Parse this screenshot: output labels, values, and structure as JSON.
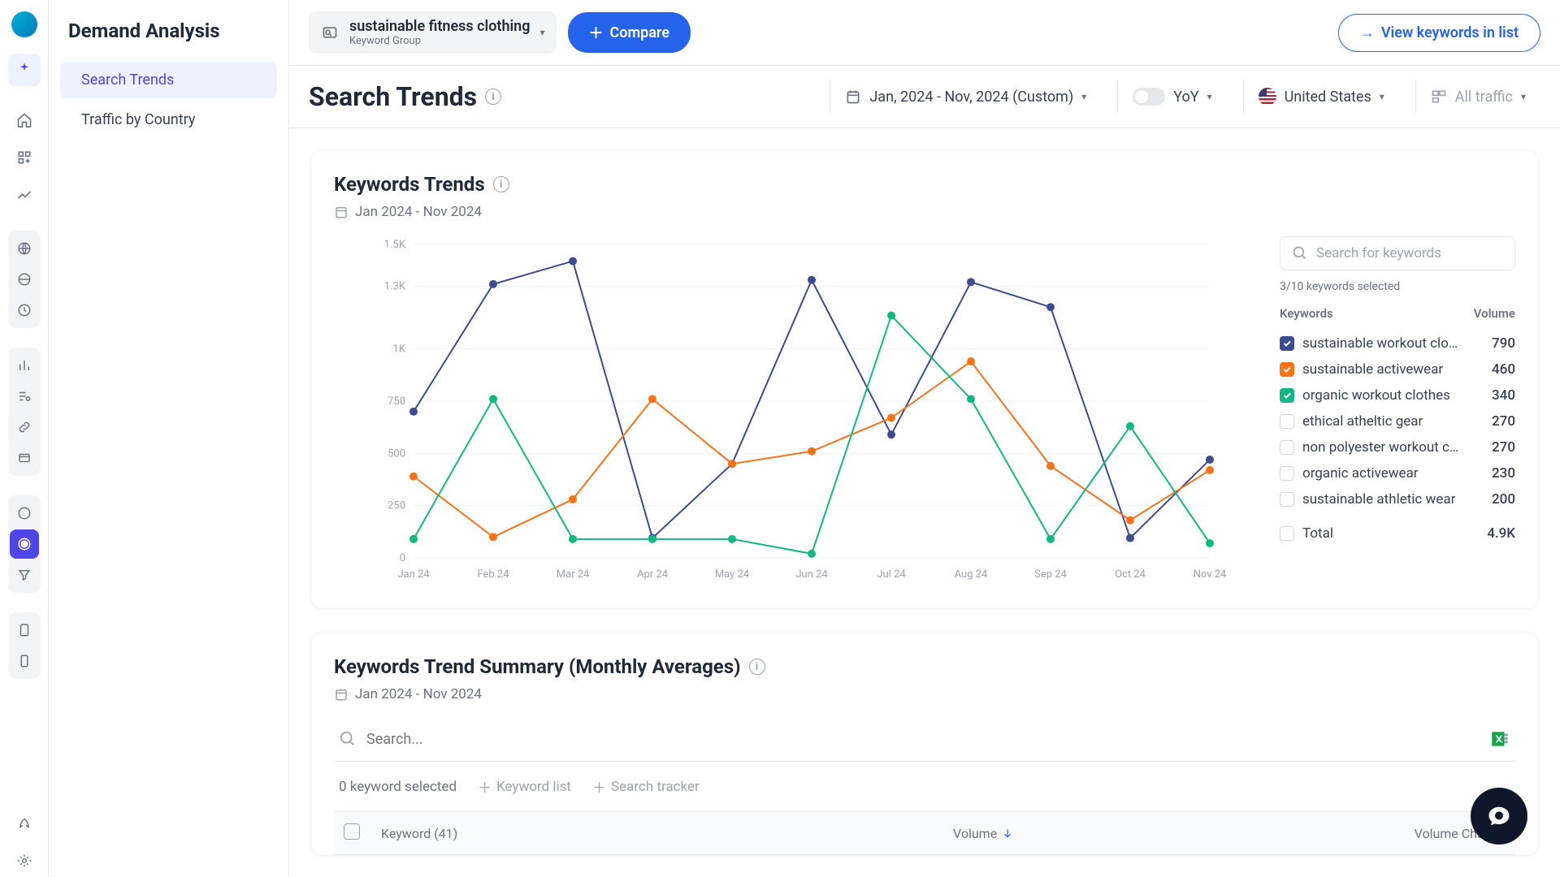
{
  "sidebar": {
    "title": "Demand Analysis",
    "items": [
      {
        "label": "Search Trends",
        "active": true
      },
      {
        "label": "Traffic by Country",
        "active": false
      }
    ]
  },
  "topbar": {
    "keyword_group": {
      "title": "sustainable fitness clothing",
      "subtitle": "Keyword Group"
    },
    "compare_label": "Compare",
    "view_list_label": "View keywords in list"
  },
  "subbar": {
    "page_title": "Search Trends",
    "date_range": "Jan, 2024 - Nov, 2024 (Custom)",
    "yoy_label": "YoY",
    "country": "United States",
    "traffic": "All traffic"
  },
  "chart_card": {
    "title": "Keywords Trends",
    "date_range": "Jan 2024 - Nov 2024",
    "search_placeholder": "Search for keywords",
    "selected_note": "3/10 keywords selected",
    "legend_header_kw": "Keywords",
    "legend_header_vol": "Volume",
    "total_label": "Total",
    "total_value": "4.9K",
    "chart": {
      "type": "line",
      "x_labels": [
        "Jan 24",
        "Feb 24",
        "Mar 24",
        "Apr 24",
        "May 24",
        "Jun 24",
        "Jul 24",
        "Aug 24",
        "Sep 24",
        "Oct 24",
        "Nov 24"
      ],
      "y_ticks": [
        0,
        250,
        500,
        750,
        "1K",
        "1.3K",
        "1.5K"
      ],
      "y_tick_values": [
        0,
        250,
        500,
        750,
        1000,
        1300,
        1500
      ],
      "ylim": [
        0,
        1500
      ],
      "series": [
        {
          "name": "sustainable workout clothes",
          "color": "#3d4b8f",
          "data": [
            700,
            1310,
            1420,
            95,
            450,
            1330,
            590,
            1320,
            1200,
            95,
            470
          ]
        },
        {
          "name": "sustainable activewear",
          "color": "#f97316",
          "data": [
            390,
            100,
            280,
            760,
            450,
            510,
            670,
            940,
            440,
            180,
            420
          ]
        },
        {
          "name": "organic workout clothes",
          "color": "#10b981",
          "data": [
            90,
            760,
            90,
            90,
            90,
            20,
            1160,
            760,
            90,
            630,
            70
          ]
        }
      ],
      "grid_color": "#f1f5f9",
      "marker_size": 5,
      "line_width": 2,
      "background": "#ffffff",
      "axis_fontsize": 13,
      "axis_color": "#9ca3af"
    },
    "legend": [
      {
        "label": "sustainable workout clo…",
        "volume": "790",
        "checked": true,
        "color": "#3d4b8f"
      },
      {
        "label": "sustainable activewear",
        "volume": "460",
        "checked": true,
        "color": "#f97316"
      },
      {
        "label": "organic workout clothes",
        "volume": "340",
        "checked": true,
        "color": "#10b981"
      },
      {
        "label": "ethical atheltic gear",
        "volume": "270",
        "checked": false
      },
      {
        "label": "non polyester workout c…",
        "volume": "270",
        "checked": false
      },
      {
        "label": "organic activewear",
        "volume": "230",
        "checked": false
      },
      {
        "label": "sustainable athletic wear",
        "volume": "200",
        "checked": false
      }
    ]
  },
  "summary_card": {
    "title": "Keywords Trend Summary (Monthly Averages)",
    "date_range": "Jan 2024 - Nov 2024",
    "search_placeholder": "Search...",
    "selected_text": "0 keyword selected",
    "keyword_list_btn": "Keyword list",
    "search_tracker_btn": "Search tracker",
    "col_keyword": "Keyword (41)",
    "col_volume": "Volume",
    "col_change": "Volume Change"
  }
}
